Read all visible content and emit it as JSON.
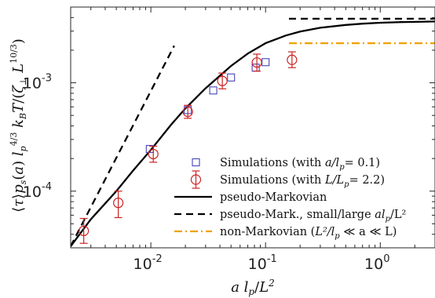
{
  "chart_data": {
    "type": "scatter",
    "xscale": "log",
    "yscale": "log",
    "xlim": [
      0.002,
      3.0
    ],
    "ylim": [
      3e-05,
      0.005
    ],
    "xlabel": "a l_p/L^2",
    "ylabel": "⟨τ⟩p_s(a) l_p^{4/3} k_B T/(ζ_⊥ L^{10/3})",
    "grid": false,
    "legend_position": "bottom-right",
    "xticks": [
      {
        "value": 0.01,
        "base": "10",
        "exp": "-2"
      },
      {
        "value": 0.1,
        "base": "10",
        "exp": "-1"
      },
      {
        "value": 1,
        "base": "10",
        "exp": "0"
      }
    ],
    "yticks": [
      {
        "value": 0.0001,
        "base": "10",
        "exp": "-4"
      },
      {
        "value": 0.001,
        "base": "10",
        "exp": "-3"
      }
    ],
    "series": [
      {
        "name": "Simulations (with a/l_p= 0.1)",
        "kind": "markers",
        "marker": "square",
        "color": "#4444bb",
        "x": [
          0.0098,
          0.021,
          0.035,
          0.05,
          0.082,
          0.1
        ],
        "y": [
          0.000245,
          0.00056,
          0.00085,
          0.00112,
          0.00138,
          0.00155
        ]
      },
      {
        "name": "Simulations (with L/L_p= 2.2)",
        "kind": "markers",
        "marker": "circle",
        "color": "#cc2222",
        "x": [
          0.0026,
          0.0052,
          0.0105,
          0.021,
          0.042,
          0.084,
          0.17
        ],
        "y": [
          4.3e-05,
          7.8e-05,
          0.00022,
          0.00054,
          0.00104,
          0.00154,
          0.00163
        ],
        "err_lo": [
          3.3e-05,
          5.7e-05,
          0.000185,
          0.00047,
          0.00088,
          0.00128,
          0.00138
        ],
        "err_hi": [
          5.6e-05,
          0.0001,
          0.00026,
          0.00062,
          0.00123,
          0.00184,
          0.00193
        ]
      },
      {
        "name": "pseudo-Markovian",
        "kind": "line",
        "dash": "solid",
        "color": "#000000",
        "x": [
          0.002,
          0.003,
          0.005,
          0.007,
          0.01,
          0.015,
          0.02,
          0.03,
          0.05,
          0.07,
          0.1,
          0.15,
          0.2,
          0.3,
          0.5,
          0.7,
          1.0,
          1.5,
          2.0,
          3.0
        ],
        "y": [
          3.1e-05,
          5.5e-05,
          0.0001,
          0.000155,
          0.00024,
          0.00041,
          0.00058,
          0.00089,
          0.00143,
          0.00186,
          0.00232,
          0.00273,
          0.00297,
          0.00322,
          0.00342,
          0.00351,
          0.00358,
          0.00363,
          0.00365,
          0.00368
        ]
      },
      {
        "name": "pseudo-Mark., small/large al_p/L^2",
        "kind": "line",
        "dash": "dashed",
        "color": "#000000",
        "segments": [
          {
            "x": [
              0.002,
              0.016
            ],
            "y": [
              3.1e-05,
              0.0022
            ]
          },
          {
            "x": [
              0.16,
              3.0
            ],
            "y": [
              0.0039,
              0.0039
            ]
          }
        ]
      },
      {
        "name": "non-Markovian (L^2/l_p ≪ a ≪ L)",
        "kind": "line",
        "dash": "dashdot",
        "color": "#f0a000",
        "x": [
          0.16,
          3.0
        ],
        "y": [
          0.00232,
          0.00232
        ]
      }
    ]
  },
  "legend": [
    {
      "name": "Simulations (with a/l_p= 0.1)",
      "prefix": "Simulations (with ",
      "var": "a/l",
      "sub": "p",
      "suffix": "= 0.1)"
    },
    {
      "name": "Simulations (with L/L_p= 2.2)",
      "prefix": "Simulations (with ",
      "var": "L/L",
      "sub": "p",
      "suffix": "= 2.2)"
    },
    {
      "name": "pseudo-Markovian",
      "prefix": "pseudo-Markovian",
      "var": "",
      "sub": "",
      "suffix": ""
    },
    {
      "name": "pseudo-Mark., small/large al_p/L^2",
      "prefix": "pseudo-Mark., small/large ",
      "var": "al",
      "sub": "p",
      "suffix": "/L²"
    },
    {
      "name": "non-Markovian (L^2/l_p ≪ a ≪ L)",
      "prefix": "non-Markovian (",
      "var": "L²/l",
      "sub": "p",
      "suffix": " ≪ a ≪ L)"
    }
  ]
}
